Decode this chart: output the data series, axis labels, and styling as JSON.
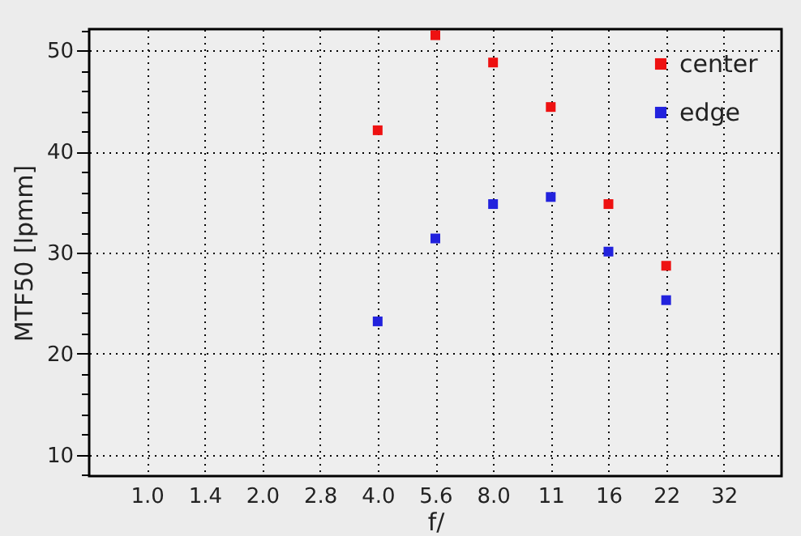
{
  "chart_data": {
    "type": "scatter",
    "xlabel": "f/",
    "ylabel": "MTF50 [lpmm]",
    "categories": [
      "1.0",
      "1.4",
      "2.0",
      "2.8",
      "4.0",
      "5.6",
      "8.0",
      "11",
      "16",
      "22",
      "32"
    ],
    "series": [
      {
        "name": "center",
        "color": "#ee1111",
        "values": [
          null,
          null,
          null,
          null,
          42.1,
          51.5,
          48.8,
          44.4,
          34.8,
          28.7,
          null
        ]
      },
      {
        "name": "edge",
        "color": "#2222dd",
        "values": [
          null,
          null,
          null,
          null,
          23.2,
          31.4,
          34.8,
          35.5,
          30.1,
          25.3,
          null
        ]
      }
    ],
    "ylim": [
      7.9,
      52.1
    ],
    "yticks": [
      {
        "value": 8,
        "label": null
      },
      10,
      {
        "value": 12,
        "label": null
      },
      {
        "value": 14,
        "label": null
      },
      {
        "value": 16,
        "label": null
      },
      {
        "value": 18,
        "label": null
      },
      20,
      {
        "value": 22,
        "label": null
      },
      {
        "value": 24,
        "label": null
      },
      {
        "value": 26,
        "label": null
      },
      {
        "value": 28,
        "label": null
      },
      30,
      {
        "value": 32,
        "label": null
      },
      {
        "value": 34,
        "label": null
      },
      {
        "value": 36,
        "label": null
      },
      {
        "value": 38,
        "label": null
      },
      40,
      {
        "value": 42,
        "label": null
      },
      {
        "value": 44,
        "label": null
      },
      {
        "value": 46,
        "label": null
      },
      {
        "value": 48,
        "label": null
      },
      50,
      {
        "value": 52,
        "label": null
      }
    ],
    "grid": true,
    "legend": "top right",
    "marker": "square"
  }
}
